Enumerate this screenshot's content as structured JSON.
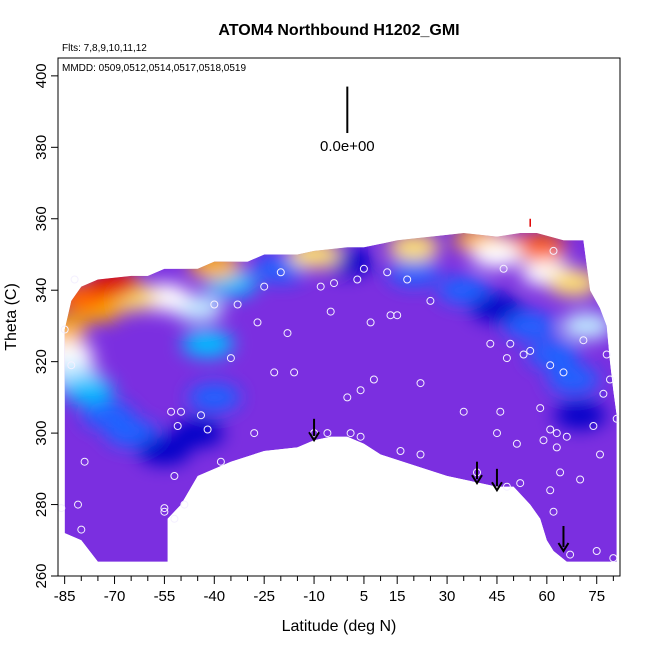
{
  "chart_data": {
    "type": "heatmap",
    "title": "ATOM4 Northbound H1202_GMI",
    "xlabel": "Latitude (deg N)",
    "ylabel": "Theta (C)",
    "xlim": [
      -87,
      82
    ],
    "ylim": [
      260,
      405
    ],
    "x_ticks": [
      -85,
      -70,
      -55,
      -40,
      -25,
      -10,
      5,
      15,
      30,
      45,
      60,
      75
    ],
    "y_ticks": [
      260,
      280,
      300,
      320,
      340,
      360,
      380,
      400
    ],
    "annotations": {
      "flights": "Flts: 7,8,9,10,11,12",
      "dates": "MMDD: 0509,0512,0514,0517,0518,0519",
      "scale_label": "0.0e+00"
    },
    "colormap": [
      "#8a2be2",
      "#7b2fe0",
      "#0000c8",
      "#1a64ff",
      "#00bfff",
      "#bfe8ff",
      "#ffffff",
      "#ffe070",
      "#ffb000",
      "#ff6000",
      "#e00000"
    ],
    "grid": false,
    "legend": "none",
    "boundary": {
      "top": [
        [
          -85,
          329
        ],
        [
          -83,
          337
        ],
        [
          -80,
          341
        ],
        [
          -75,
          343
        ],
        [
          -65,
          344
        ],
        [
          -60,
          344
        ],
        [
          -55,
          346
        ],
        [
          -45,
          346
        ],
        [
          -40,
          348
        ],
        [
          -30,
          348
        ],
        [
          -25,
          350
        ],
        [
          -15,
          350
        ],
        [
          -10,
          351
        ],
        [
          0,
          352
        ],
        [
          5,
          352
        ],
        [
          10,
          353
        ],
        [
          15,
          354
        ],
        [
          25,
          355
        ],
        [
          35,
          356
        ],
        [
          45,
          355
        ],
        [
          52,
          356
        ],
        [
          57,
          356
        ],
        [
          65,
          354
        ],
        [
          71,
          354
        ],
        [
          73,
          340
        ],
        [
          76,
          335
        ],
        [
          78,
          330
        ],
        [
          79,
          320
        ],
        [
          80,
          312
        ],
        [
          81,
          305
        ]
      ],
      "bottom": [
        [
          -85,
          272
        ],
        [
          -80,
          270
        ],
        [
          -75,
          264
        ],
        [
          -54,
          264
        ],
        [
          -54,
          276
        ],
        [
          -50,
          280
        ],
        [
          -45,
          288
        ],
        [
          -35,
          292
        ],
        [
          -25,
          295
        ],
        [
          -15,
          296
        ],
        [
          -10,
          298
        ],
        [
          -5,
          299
        ],
        [
          0,
          299
        ],
        [
          5,
          297
        ],
        [
          10,
          294
        ],
        [
          20,
          291
        ],
        [
          30,
          288
        ],
        [
          40,
          286
        ],
        [
          45,
          285
        ],
        [
          50,
          285
        ],
        [
          55,
          280
        ],
        [
          58,
          276
        ],
        [
          60,
          270
        ],
        [
          62,
          267
        ],
        [
          66,
          264
        ],
        [
          75,
          264
        ],
        [
          81,
          264
        ]
      ],
      "cavity": [
        [
          -54,
          264
        ],
        [
          -54,
          276
        ],
        [
          -50,
          280
        ],
        [
          -45,
          288
        ],
        [
          -35,
          292
        ],
        [
          -25,
          295
        ],
        [
          -15,
          296
        ],
        [
          -10,
          298
        ],
        [
          -5,
          299
        ],
        [
          0,
          299
        ],
        [
          5,
          297
        ],
        [
          10,
          294
        ],
        [
          20,
          291
        ],
        [
          30,
          288
        ],
        [
          40,
          286
        ],
        [
          45,
          285
        ],
        [
          50,
          285
        ],
        [
          55,
          280
        ],
        [
          58,
          276
        ],
        [
          60,
          270
        ],
        [
          62,
          267
        ],
        [
          66,
          264
        ]
      ]
    },
    "profiles": [
      {
        "lat": -86,
        "theta": 329,
        "color": 8
      },
      {
        "lat": -84,
        "theta": 322,
        "color": 6
      },
      {
        "lat": -82,
        "theta": 316,
        "color": 5
      },
      {
        "lat": -78,
        "theta": 312,
        "color": 4
      },
      {
        "lat": -72,
        "theta": 305,
        "color": 3
      },
      {
        "lat": -65,
        "theta": 300,
        "color": 3
      },
      {
        "lat": -55,
        "theta": 295,
        "color": 2
      },
      {
        "lat": -45,
        "theta": 300,
        "color": 2
      },
      {
        "lat": -40,
        "theta": 310,
        "color": 3
      },
      {
        "lat": -42,
        "theta": 325,
        "color": 4
      },
      {
        "lat": -45,
        "theta": 335,
        "color": 5
      },
      {
        "lat": -55,
        "theta": 338,
        "color": 6
      },
      {
        "lat": -65,
        "theta": 338,
        "color": 7
      },
      {
        "lat": -75,
        "theta": 335,
        "color": 8
      },
      {
        "lat": -80,
        "theta": 338,
        "color": 9
      },
      {
        "lat": -70,
        "theta": 342,
        "color": 10
      },
      {
        "lat": -35,
        "theta": 342,
        "color": 4
      },
      {
        "lat": -20,
        "theta": 346,
        "color": 3
      },
      {
        "lat": 0,
        "theta": 348,
        "color": 2
      },
      {
        "lat": 20,
        "theta": 345,
        "color": 3
      },
      {
        "lat": 35,
        "theta": 340,
        "color": 3
      },
      {
        "lat": 45,
        "theta": 335,
        "color": 2
      },
      {
        "lat": 55,
        "theta": 330,
        "color": 3
      },
      {
        "lat": 62,
        "theta": 322,
        "color": 3
      },
      {
        "lat": 68,
        "theta": 315,
        "color": 3
      },
      {
        "lat": 70,
        "theta": 305,
        "color": 2
      },
      {
        "lat": 60,
        "theta": 345,
        "color": 6
      },
      {
        "lat": 68,
        "theta": 342,
        "color": 7
      },
      {
        "lat": 72,
        "theta": 330,
        "color": 5
      },
      {
        "lat": 50,
        "theta": 352,
        "color": 10
      },
      {
        "lat": 40,
        "theta": 354,
        "color": 8
      },
      {
        "lat": 20,
        "theta": 352,
        "color": 7
      },
      {
        "lat": -10,
        "theta": 350,
        "color": 7
      },
      {
        "lat": -40,
        "theta": 347,
        "color": 8
      },
      {
        "lat": 58,
        "theta": 352,
        "color": 9
      },
      {
        "lat": 45,
        "theta": 350,
        "color": 6
      }
    ],
    "samples": [
      [
        -86,
        279
      ],
      [
        -85,
        329
      ],
      [
        -83,
        319
      ],
      [
        -82,
        343
      ],
      [
        -81,
        280
      ],
      [
        -80,
        273
      ],
      [
        -79,
        292
      ],
      [
        -55,
        278
      ],
      [
        -55,
        279
      ],
      [
        -53,
        306
      ],
      [
        -52,
        288
      ],
      [
        -52,
        276
      ],
      [
        -51,
        302
      ],
      [
        -50,
        306
      ],
      [
        -49,
        280
      ],
      [
        -44,
        305
      ],
      [
        -42,
        301
      ],
      [
        -40,
        336
      ],
      [
        -38,
        292
      ],
      [
        -35,
        321
      ],
      [
        -33,
        336
      ],
      [
        -28,
        300
      ],
      [
        -27,
        331
      ],
      [
        -25,
        341
      ],
      [
        -22,
        317
      ],
      [
        -20,
        345
      ],
      [
        -18,
        328
      ],
      [
        -16,
        317
      ],
      [
        -10,
        300
      ],
      [
        -8,
        341
      ],
      [
        -6,
        300
      ],
      [
        -5,
        334
      ],
      [
        -4,
        342
      ],
      [
        0,
        310
      ],
      [
        1,
        300
      ],
      [
        3,
        343
      ],
      [
        4,
        299
      ],
      [
        4,
        312
      ],
      [
        5,
        346
      ],
      [
        7,
        331
      ],
      [
        8,
        315
      ],
      [
        12,
        345
      ],
      [
        13,
        333
      ],
      [
        15,
        333
      ],
      [
        16,
        295
      ],
      [
        18,
        343
      ],
      [
        22,
        294
      ],
      [
        22,
        314
      ],
      [
        25,
        337
      ],
      [
        35,
        306
      ],
      [
        39,
        289
      ],
      [
        43,
        325
      ],
      [
        45,
        300
      ],
      [
        46,
        306
      ],
      [
        47,
        346
      ],
      [
        48,
        321
      ],
      [
        48,
        285
      ],
      [
        49,
        325
      ],
      [
        51,
        297
      ],
      [
        52,
        286
      ],
      [
        53,
        322
      ],
      [
        55,
        323
      ],
      [
        58,
        307
      ],
      [
        59,
        298
      ],
      [
        61,
        319
      ],
      [
        61,
        284
      ],
      [
        61,
        301
      ],
      [
        62,
        278
      ],
      [
        62,
        351
      ],
      [
        63,
        300
      ],
      [
        63,
        296
      ],
      [
        64,
        289
      ],
      [
        65,
        317
      ],
      [
        66,
        299
      ],
      [
        67,
        266
      ],
      [
        70,
        287
      ],
      [
        71,
        326
      ],
      [
        74,
        302
      ],
      [
        75,
        267
      ],
      [
        76,
        294
      ],
      [
        77,
        311
      ],
      [
        78,
        322
      ],
      [
        79,
        315
      ],
      [
        80,
        265
      ],
      [
        81,
        304
      ]
    ],
    "arrows": [
      {
        "lat": -10,
        "theta_top": 304,
        "theta_tip": 298
      },
      {
        "lat": 39,
        "theta_top": 292,
        "theta_tip": 286
      },
      {
        "lat": 45,
        "theta_top": 290,
        "theta_tip": 284
      },
      {
        "lat": 65,
        "theta_top": 274,
        "theta_tip": 267
      }
    ],
    "scale_bar": {
      "lat": 0,
      "theta_top": 397,
      "theta_bottom": 384
    },
    "tick_mark": {
      "lat": 55,
      "theta": 360
    }
  }
}
